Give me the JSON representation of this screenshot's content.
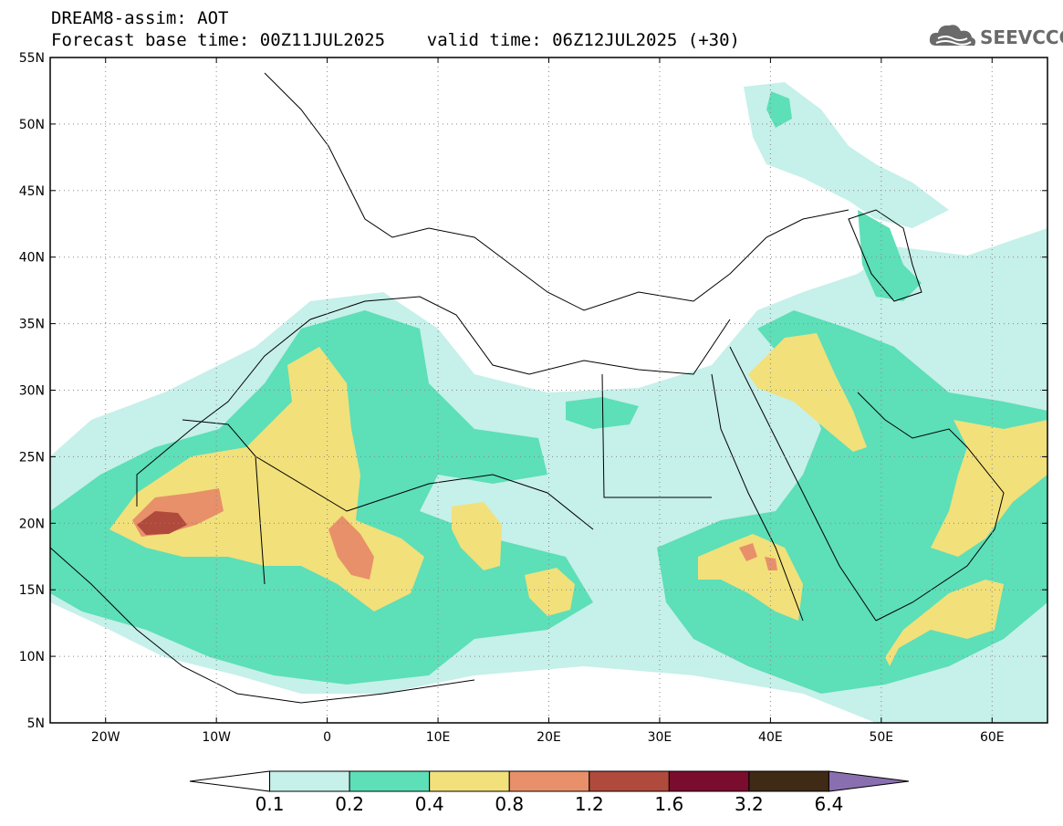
{
  "header": {
    "title_line1": "DREAM8-assim: AOT",
    "title_line2": "Forecast base time: 00Z11JUL2025    valid time: 06Z12JUL2025 (+30)"
  },
  "logo": {
    "text": "SEEVCCC",
    "icon": "cloud-icon"
  },
  "map": {
    "lat_labels": [
      "55N",
      "50N",
      "45N",
      "40N",
      "35N",
      "30N",
      "25N",
      "20N",
      "15N",
      "10N",
      "5N"
    ],
    "lon_labels": [
      "20W",
      "10W",
      "0",
      "10E",
      "20E",
      "30E",
      "40E",
      "50E",
      "60E"
    ],
    "lat_range": [
      5,
      55
    ],
    "lon_range": [
      -25,
      65
    ],
    "background_color": "#ffffff"
  },
  "colorbar": {
    "labels": [
      "0.1",
      "0.2",
      "0.4",
      "0.8",
      "1.2",
      "1.6",
      "3.2",
      "6.4"
    ],
    "colors": [
      "#ffffff",
      "#c6f0ea",
      "#5ddfb8",
      "#f2e07a",
      "#e8906a",
      "#b04a3c",
      "#7a0c2e",
      "#3f2a16",
      "#8a6fb0"
    ]
  }
}
